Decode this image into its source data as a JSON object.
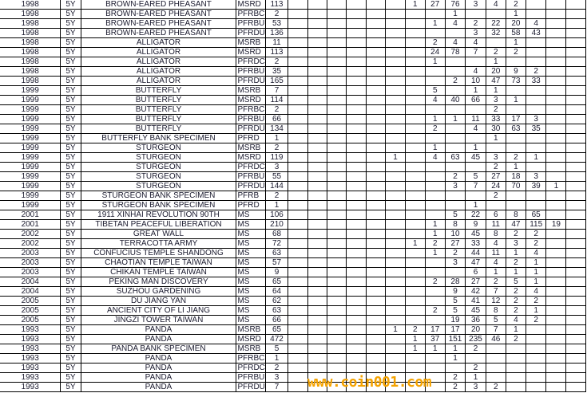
{
  "sheet": {
    "rows": [
      {
        "year": "1998",
        "term": "5Y",
        "name": "BROWN-EARED PHEASANT",
        "code": "MSRD",
        "qty": "113",
        "dist": [
          "",
          "",
          "",
          "",
          "",
          "",
          "1",
          "27",
          "76",
          "3",
          "4",
          "2",
          "",
          ""
        ]
      },
      {
        "year": "1998",
        "term": "5Y",
        "name": "BROWN-EARED PHEASANT",
        "code": "PFRBC",
        "qty": "2",
        "dist": [
          "",
          "",
          "",
          "",
          "",
          "",
          "",
          "",
          "1",
          "",
          "",
          "1",
          "",
          ""
        ]
      },
      {
        "year": "1998",
        "term": "5Y",
        "name": "BROWN-EARED PHEASANT",
        "code": "PFRBU",
        "qty": "53",
        "dist": [
          "",
          "",
          "",
          "",
          "",
          "",
          "",
          "1",
          "4",
          "2",
          "22",
          "20",
          "4",
          ""
        ]
      },
      {
        "year": "1998",
        "term": "5Y",
        "name": "BROWN-EARED PHEASANT",
        "code": "PFRDU",
        "qty": "136",
        "dist": [
          "",
          "",
          "",
          "",
          "",
          "",
          "",
          "",
          "",
          "3",
          "32",
          "58",
          "43",
          ""
        ]
      },
      {
        "year": "1998",
        "term": "5Y",
        "name": "ALLIGATOR",
        "code": "MSRB",
        "qty": "11",
        "dist": [
          "",
          "",
          "",
          "",
          "",
          "",
          "",
          "2",
          "4",
          "4",
          "",
          "1",
          "",
          ""
        ]
      },
      {
        "year": "1998",
        "term": "5Y",
        "name": "ALLIGATOR",
        "code": "MSRD",
        "qty": "113",
        "dist": [
          "",
          "",
          "",
          "",
          "",
          "",
          "",
          "24",
          "78",
          "7",
          "2",
          "2",
          "",
          ""
        ]
      },
      {
        "year": "1998",
        "term": "5Y",
        "name": "ALLIGATOR",
        "code": "PFRDC",
        "qty": "2",
        "dist": [
          "",
          "",
          "",
          "",
          "",
          "",
          "",
          "1",
          "",
          "",
          "1",
          "",
          "",
          ""
        ]
      },
      {
        "year": "1998",
        "term": "5Y",
        "name": "ALLIGATOR",
        "code": "PFRBU",
        "qty": "35",
        "dist": [
          "",
          "",
          "",
          "",
          "",
          "",
          "",
          "",
          "",
          "4",
          "20",
          "9",
          "2",
          ""
        ]
      },
      {
        "year": "1998",
        "term": "5Y",
        "name": "ALLIGATOR",
        "code": "PFRDU",
        "qty": "165",
        "dist": [
          "",
          "",
          "",
          "",
          "",
          "",
          "",
          "",
          "2",
          "10",
          "47",
          "73",
          "33",
          ""
        ]
      },
      {
        "year": "1999",
        "term": "5Y",
        "name": "BUTTERFLY",
        "code": "MSRB",
        "qty": "7",
        "dist": [
          "",
          "",
          "",
          "",
          "",
          "",
          "",
          "5",
          "",
          "1",
          "1",
          "",
          "",
          ""
        ]
      },
      {
        "year": "1999",
        "term": "5Y",
        "name": "BUTTERFLY",
        "code": "MSRD",
        "qty": "114",
        "dist": [
          "",
          "",
          "",
          "",
          "",
          "",
          "",
          "4",
          "40",
          "66",
          "3",
          "1",
          "",
          ""
        ]
      },
      {
        "year": "1999",
        "term": "5Y",
        "name": "BUTTERFLY",
        "code": "PFRBC",
        "qty": "2",
        "dist": [
          "",
          "",
          "",
          "",
          "",
          "",
          "",
          "",
          "",
          "",
          "2",
          "",
          "",
          ""
        ]
      },
      {
        "year": "1999",
        "term": "5Y",
        "name": "BUTTERFLY",
        "code": "PFRBU",
        "qty": "66",
        "dist": [
          "",
          "",
          "",
          "",
          "",
          "",
          "",
          "1",
          "1",
          "11",
          "33",
          "17",
          "3",
          ""
        ]
      },
      {
        "year": "1999",
        "term": "5Y",
        "name": "BUTTERFLY",
        "code": "PFRDU",
        "qty": "134",
        "dist": [
          "",
          "",
          "",
          "",
          "",
          "",
          "",
          "2",
          "",
          "4",
          "30",
          "63",
          "35",
          ""
        ]
      },
      {
        "year": "1999",
        "term": "5Y",
        "name": "BUTTERFLY BANK SPECIMEN",
        "code": "PFRD",
        "qty": "1",
        "dist": [
          "",
          "",
          "",
          "",
          "",
          "",
          "",
          "",
          "",
          "",
          "1",
          "",
          "",
          ""
        ]
      },
      {
        "year": "1999",
        "term": "5Y",
        "name": "STURGEON",
        "code": "MSRB",
        "qty": "2",
        "dist": [
          "",
          "",
          "",
          "",
          "",
          "",
          "",
          "1",
          "",
          "1",
          "",
          "",
          "",
          ""
        ]
      },
      {
        "year": "1999",
        "term": "5Y",
        "name": "STURGEON",
        "code": "MSRD",
        "qty": "119",
        "dist": [
          "",
          "",
          "",
          "",
          "",
          "1",
          "",
          "4",
          "63",
          "45",
          "3",
          "2",
          "1",
          ""
        ]
      },
      {
        "year": "1999",
        "term": "5Y",
        "name": "STURGEON",
        "code": "PFRDC",
        "qty": "3",
        "dist": [
          "",
          "",
          "",
          "",
          "",
          "",
          "",
          "",
          "",
          "",
          "2",
          "1",
          "",
          ""
        ]
      },
      {
        "year": "1999",
        "term": "5Y",
        "name": "STURGEON",
        "code": "PFRBU",
        "qty": "55",
        "dist": [
          "",
          "",
          "",
          "",
          "",
          "",
          "",
          "",
          "2",
          "5",
          "27",
          "18",
          "3",
          ""
        ]
      },
      {
        "year": "1999",
        "term": "5Y",
        "name": "STURGEON",
        "code": "PFRDU",
        "qty": "144",
        "dist": [
          "",
          "",
          "",
          "",
          "",
          "",
          "",
          "",
          "3",
          "7",
          "24",
          "70",
          "39",
          "1"
        ]
      },
      {
        "year": "1999",
        "term": "5Y",
        "name": "STURGEON BANK SPECIMEN",
        "code": "PFRB",
        "qty": "2",
        "dist": [
          "",
          "",
          "",
          "",
          "",
          "",
          "",
          "",
          "",
          "",
          "2",
          "",
          "",
          ""
        ]
      },
      {
        "year": "1999",
        "term": "5Y",
        "name": "STURGEON BANK SPECIMEN",
        "code": "PFRD",
        "qty": "1",
        "dist": [
          "",
          "",
          "",
          "",
          "",
          "",
          "",
          "",
          "",
          "1",
          "",
          "",
          "",
          ""
        ]
      },
      {
        "year": "2001",
        "term": "5Y",
        "name": "1911 XINHAI REVOLUTION 90TH",
        "code": "MS",
        "qty": "106",
        "dist": [
          "",
          "",
          "",
          "",
          "",
          "",
          "",
          "",
          "5",
          "22",
          "6",
          "8",
          "65",
          ""
        ]
      },
      {
        "year": "2001",
        "term": "5Y",
        "name": "TIBETAN PEACEFUL LIBERATION",
        "code": "MS",
        "qty": "210",
        "dist": [
          "",
          "",
          "",
          "",
          "",
          "",
          "",
          "1",
          "8",
          "9",
          "11",
          "47",
          "115",
          "19"
        ]
      },
      {
        "year": "2002",
        "term": "5Y",
        "name": "GREAT WALL",
        "code": "MS",
        "qty": "68",
        "dist": [
          "",
          "",
          "",
          "",
          "",
          "",
          "",
          "1",
          "10",
          "45",
          "8",
          "2",
          "2",
          ""
        ]
      },
      {
        "year": "2002",
        "term": "5Y",
        "name": "TERRACOTTA ARMY",
        "code": "MS",
        "qty": "72",
        "dist": [
          "",
          "",
          "",
          "",
          "",
          "",
          "1",
          "2",
          "27",
          "33",
          "4",
          "3",
          "2",
          ""
        ]
      },
      {
        "year": "2003",
        "term": "5Y",
        "name": "CONFUCIUS TEMPLE SHANDONG",
        "code": "MS",
        "qty": "63",
        "dist": [
          "",
          "",
          "",
          "",
          "",
          "",
          "",
          "1",
          "2",
          "44",
          "11",
          "1",
          "4",
          ""
        ]
      },
      {
        "year": "2003",
        "term": "5Y",
        "name": "CHAOTIAN TEMPLE TAIWAN",
        "code": "MS",
        "qty": "57",
        "dist": [
          "",
          "",
          "",
          "",
          "",
          "",
          "",
          "",
          "3",
          "47",
          "4",
          "2",
          "1",
          ""
        ]
      },
      {
        "year": "2003",
        "term": "5Y",
        "name": "CHIKAN TEMPLE TAIWAN",
        "code": "MS",
        "qty": "9",
        "dist": [
          "",
          "",
          "",
          "",
          "",
          "",
          "",
          "",
          "",
          "6",
          "1",
          "1",
          "1",
          ""
        ]
      },
      {
        "year": "2004",
        "term": "5Y",
        "name": "PEKING MAN DISCOVERY",
        "code": "MS",
        "qty": "65",
        "dist": [
          "",
          "",
          "",
          "",
          "",
          "",
          "",
          "2",
          "28",
          "27",
          "2",
          "5",
          "1",
          ""
        ]
      },
      {
        "year": "2004",
        "term": "5Y",
        "name": "SUZHOU GARDENING",
        "code": "MS",
        "qty": "64",
        "dist": [
          "",
          "",
          "",
          "",
          "",
          "",
          "",
          "",
          "9",
          "42",
          "7",
          "2",
          "4",
          ""
        ]
      },
      {
        "year": "2005",
        "term": "5Y",
        "name": "DU JIANG YAN",
        "code": "MS",
        "qty": "62",
        "dist": [
          "",
          "",
          "",
          "",
          "",
          "",
          "",
          "",
          "5",
          "41",
          "12",
          "2",
          "2",
          ""
        ]
      },
      {
        "year": "2005",
        "term": "5Y",
        "name": "ANCIENT CITY OF LI JIANG",
        "code": "MS",
        "qty": "63",
        "dist": [
          "",
          "",
          "",
          "",
          "",
          "",
          "",
          "2",
          "5",
          "45",
          "8",
          "2",
          "1",
          ""
        ]
      },
      {
        "year": "2005",
        "term": "5Y",
        "name": "JINGZI TOWER TAIWAN",
        "code": "MS",
        "qty": "66",
        "dist": [
          "",
          "",
          "",
          "",
          "",
          "",
          "",
          "",
          "19",
          "36",
          "5",
          "4",
          "2",
          ""
        ]
      },
      {
        "year": "1993",
        "term": "5Y",
        "name": "PANDA",
        "code": "MSRB",
        "qty": "65",
        "dist": [
          "",
          "",
          "",
          "",
          "",
          "1",
          "2",
          "17",
          "17",
          "20",
          "7",
          "1",
          "",
          ""
        ]
      },
      {
        "year": "1993",
        "term": "5Y",
        "name": "PANDA",
        "code": "MSRD",
        "qty": "472",
        "dist": [
          "",
          "",
          "",
          "",
          "",
          "",
          "1",
          "37",
          "151",
          "235",
          "46",
          "2",
          "",
          ""
        ]
      },
      {
        "year": "1993",
        "term": "5Y",
        "name": "PANDA BANK SPECIMEN",
        "code": "MSRB",
        "qty": "5",
        "dist": [
          "",
          "",
          "",
          "",
          "",
          "",
          "1",
          "1",
          "1",
          "2",
          "",
          "",
          "",
          ""
        ]
      },
      {
        "year": "1993",
        "term": "5Y",
        "name": "PANDA",
        "code": "PFRBC",
        "qty": "1",
        "dist": [
          "",
          "",
          "",
          "",
          "",
          "",
          "",
          "",
          "1",
          "",
          "",
          "",
          "",
          ""
        ]
      },
      {
        "year": "1993",
        "term": "5Y",
        "name": "PANDA",
        "code": "PFRDC",
        "qty": "2",
        "dist": [
          "",
          "",
          "",
          "",
          "",
          "",
          "",
          "",
          "",
          "2",
          "",
          "",
          "",
          ""
        ]
      },
      {
        "year": "1993",
        "term": "5Y",
        "name": "PANDA",
        "code": "PFRBU",
        "qty": "3",
        "dist": [
          "",
          "",
          "",
          "",
          "",
          "",
          "",
          "",
          "2",
          "1",
          "",
          "",
          "",
          ""
        ]
      },
      {
        "year": "1993",
        "term": "5Y",
        "name": "PANDA",
        "code": "PFRDU",
        "qty": "7",
        "dist": [
          "",
          "",
          "",
          "",
          "",
          "",
          "",
          "",
          "2",
          "3",
          "2",
          "",
          "",
          ""
        ]
      }
    ]
  },
  "watermark": {
    "text": "www.coin001.com",
    "color": "#f5a300"
  }
}
